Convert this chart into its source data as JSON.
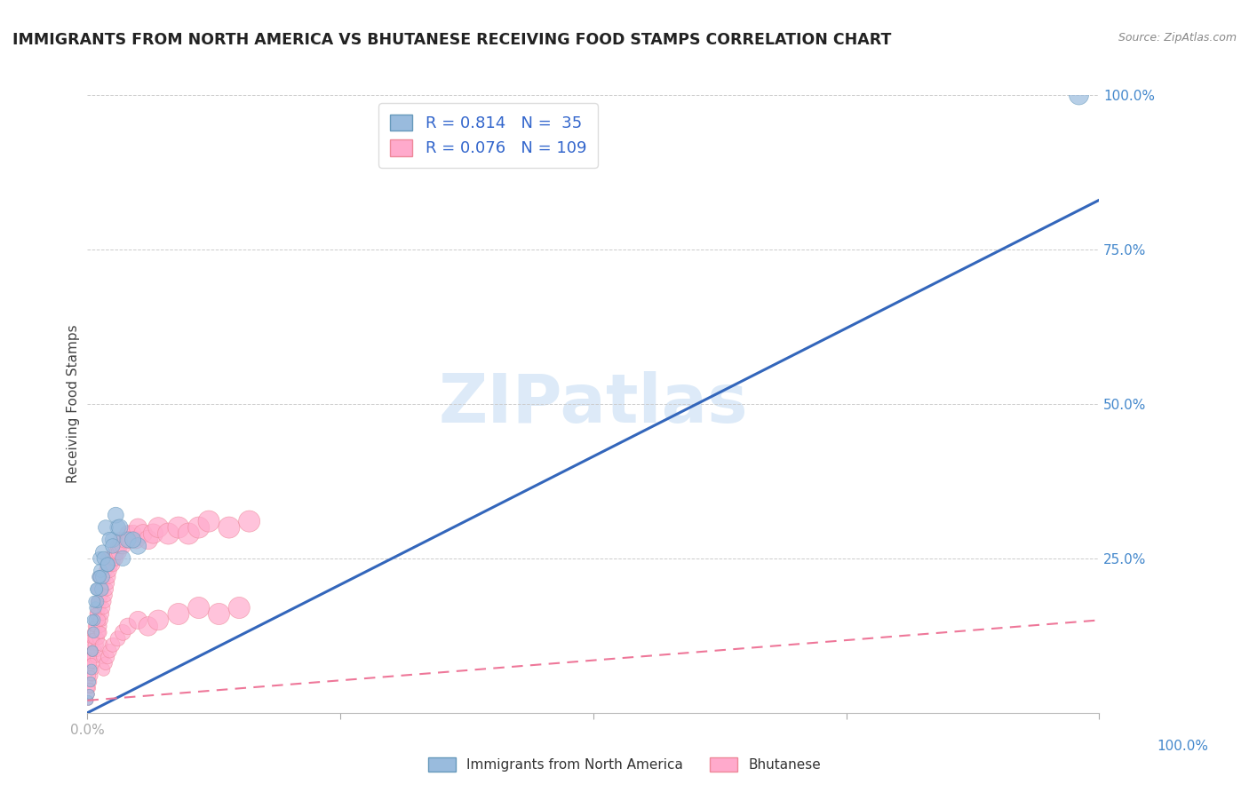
{
  "title": "IMMIGRANTS FROM NORTH AMERICA VS BHUTANESE RECEIVING FOOD STAMPS CORRELATION CHART",
  "source_text": "Source: ZipAtlas.com",
  "ylabel": "Receiving Food Stamps",
  "blue_R": 0.814,
  "blue_N": 35,
  "pink_R": 0.076,
  "pink_N": 109,
  "blue_color": "#99BBDD",
  "pink_color": "#FFAACC",
  "blue_edge_color": "#6699BB",
  "pink_edge_color": "#EE8899",
  "blue_line_color": "#3366BB",
  "pink_line_color": "#EE7799",
  "watermark": "ZIPatlas",
  "watermark_color": "#AACCEE",
  "xlim": [
    0,
    1.0
  ],
  "ylim": [
    0,
    1.0
  ],
  "blue_trend_x": [
    0.0,
    1.0
  ],
  "blue_trend_y": [
    0.0,
    0.83
  ],
  "pink_trend_x": [
    0.0,
    1.0
  ],
  "pink_trend_y": [
    0.02,
    0.15
  ],
  "blue_scatter_x": [
    0.001,
    0.002,
    0.003,
    0.004,
    0.005,
    0.006,
    0.007,
    0.008,
    0.009,
    0.01,
    0.011,
    0.012,
    0.013,
    0.014,
    0.015,
    0.02,
    0.025,
    0.03,
    0.04,
    0.05,
    0.015,
    0.018,
    0.022,
    0.028,
    0.032,
    0.005,
    0.007,
    0.009,
    0.012,
    0.016,
    0.02,
    0.025,
    0.035,
    0.045,
    0.98
  ],
  "blue_scatter_y": [
    0.02,
    0.03,
    0.05,
    0.07,
    0.1,
    0.13,
    0.15,
    0.17,
    0.2,
    0.18,
    0.22,
    0.25,
    0.23,
    0.2,
    0.22,
    0.24,
    0.28,
    0.3,
    0.28,
    0.27,
    0.26,
    0.3,
    0.28,
    0.32,
    0.3,
    0.15,
    0.18,
    0.2,
    0.22,
    0.25,
    0.24,
    0.27,
    0.25,
    0.28,
    1.0
  ],
  "blue_scatter_sizes": [
    60,
    65,
    70,
    75,
    80,
    85,
    90,
    95,
    100,
    105,
    110,
    115,
    120,
    125,
    130,
    140,
    150,
    160,
    170,
    180,
    135,
    145,
    155,
    165,
    175,
    80,
    90,
    100,
    110,
    120,
    130,
    140,
    155,
    170,
    250
  ],
  "pink_scatter_x": [
    0.001,
    0.001,
    0.002,
    0.002,
    0.002,
    0.003,
    0.003,
    0.003,
    0.004,
    0.004,
    0.004,
    0.005,
    0.005,
    0.005,
    0.006,
    0.006,
    0.006,
    0.007,
    0.007,
    0.007,
    0.008,
    0.008,
    0.008,
    0.009,
    0.009,
    0.009,
    0.01,
    0.01,
    0.01,
    0.011,
    0.011,
    0.012,
    0.012,
    0.013,
    0.013,
    0.014,
    0.014,
    0.015,
    0.015,
    0.016,
    0.016,
    0.017,
    0.017,
    0.018,
    0.018,
    0.019,
    0.019,
    0.02,
    0.02,
    0.021,
    0.022,
    0.023,
    0.024,
    0.025,
    0.026,
    0.027,
    0.028,
    0.029,
    0.03,
    0.031,
    0.032,
    0.033,
    0.035,
    0.037,
    0.04,
    0.042,
    0.045,
    0.048,
    0.05,
    0.055,
    0.06,
    0.065,
    0.07,
    0.08,
    0.09,
    0.1,
    0.11,
    0.12,
    0.14,
    0.16,
    0.002,
    0.003,
    0.004,
    0.005,
    0.006,
    0.007,
    0.008,
    0.009,
    0.01,
    0.011,
    0.012,
    0.013,
    0.014,
    0.015,
    0.016,
    0.018,
    0.02,
    0.022,
    0.025,
    0.03,
    0.035,
    0.04,
    0.05,
    0.06,
    0.07,
    0.09,
    0.11,
    0.13,
    0.15
  ],
  "pink_scatter_y": [
    0.02,
    0.05,
    0.03,
    0.07,
    0.09,
    0.04,
    0.08,
    0.11,
    0.05,
    0.09,
    0.12,
    0.06,
    0.1,
    0.13,
    0.07,
    0.11,
    0.14,
    0.08,
    0.12,
    0.15,
    0.09,
    0.13,
    0.16,
    0.1,
    0.14,
    0.17,
    0.11,
    0.15,
    0.18,
    0.12,
    0.16,
    0.13,
    0.17,
    0.14,
    0.18,
    0.15,
    0.19,
    0.16,
    0.2,
    0.17,
    0.21,
    0.18,
    0.22,
    0.19,
    0.23,
    0.2,
    0.24,
    0.21,
    0.25,
    0.22,
    0.23,
    0.24,
    0.25,
    0.24,
    0.25,
    0.26,
    0.25,
    0.26,
    0.27,
    0.26,
    0.27,
    0.28,
    0.27,
    0.28,
    0.29,
    0.28,
    0.29,
    0.28,
    0.3,
    0.29,
    0.28,
    0.29,
    0.3,
    0.29,
    0.3,
    0.29,
    0.3,
    0.31,
    0.3,
    0.31,
    0.04,
    0.06,
    0.08,
    0.1,
    0.12,
    0.14,
    0.16,
    0.18,
    0.2,
    0.22,
    0.15,
    0.13,
    0.11,
    0.09,
    0.07,
    0.08,
    0.09,
    0.1,
    0.11,
    0.12,
    0.13,
    0.14,
    0.15,
    0.14,
    0.15,
    0.16,
    0.17,
    0.16,
    0.17
  ]
}
